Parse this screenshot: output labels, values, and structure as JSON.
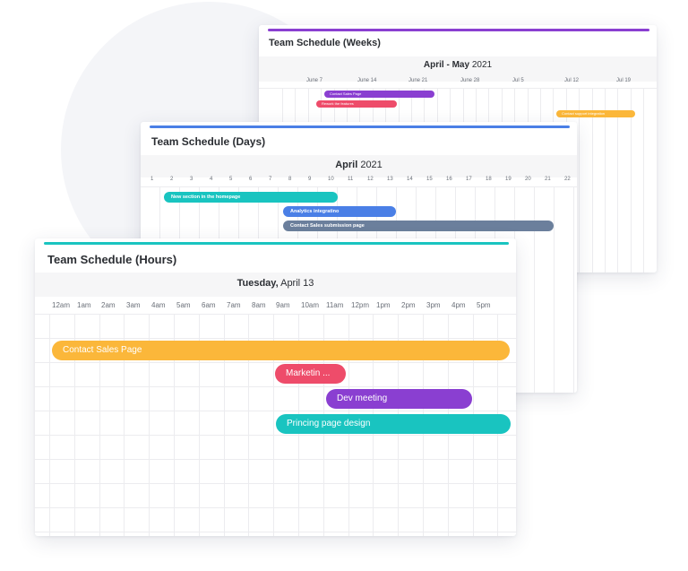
{
  "colors": {
    "purple": "#8a3fd1",
    "blue": "#4a7fe6",
    "teal": "#19c4c0",
    "orange": "#fbb73a",
    "red": "#ee4c6a",
    "slate": "#6b7f9c"
  },
  "weeks_card": {
    "title": "Team Schedule (Weeks)",
    "period_bold": "April - May",
    "period_rest": " 2021",
    "ticks": [
      "June 7",
      "June 14",
      "June 21",
      "June 28",
      "Jul 5",
      "Jul 12",
      "Jul 19"
    ],
    "events": [
      {
        "label": "Contact Sales Page",
        "color": "#8a3fd1"
      },
      {
        "label": "Rework the features",
        "color": "#ee4c6a"
      },
      {
        "label": "Contact support integration",
        "color": "#fbb73a"
      }
    ]
  },
  "days_card": {
    "title": "Team Schedule (Days)",
    "period_bold": "April",
    "period_rest": " 2021",
    "ticks": [
      "1",
      "2",
      "3",
      "4",
      "5",
      "6",
      "7",
      "8",
      "9",
      "10",
      "11",
      "12",
      "13",
      "14",
      "15",
      "16",
      "17",
      "18",
      "19",
      "20",
      "21",
      "22"
    ],
    "events": [
      {
        "label": "New section in the homepage",
        "color": "#19c4c0"
      },
      {
        "label": "Analytics integratino",
        "color": "#4a7fe6"
      },
      {
        "label": "Contact Sales submission page",
        "color": "#6b7f9c"
      }
    ]
  },
  "hours_card": {
    "title": "Team Schedule (Hours)",
    "day_bold": "Tuesday,",
    "day_rest": " April 13",
    "ticks": [
      "12am",
      "1am",
      "2am",
      "3am",
      "4am",
      "5am",
      "6am",
      "7am",
      "8am",
      "9am",
      "10am",
      "11am",
      "12pm",
      "1pm",
      "2pm",
      "3pm",
      "4pm",
      "5pm"
    ],
    "events": [
      {
        "label": "Contact Sales Page",
        "color": "#fbb73a"
      },
      {
        "label": "Marketin ...",
        "color": "#ee4c6a"
      },
      {
        "label": "Dev meeting",
        "color": "#8a3fd1"
      },
      {
        "label": "Princing page design",
        "color": "#19c4c0"
      }
    ]
  }
}
